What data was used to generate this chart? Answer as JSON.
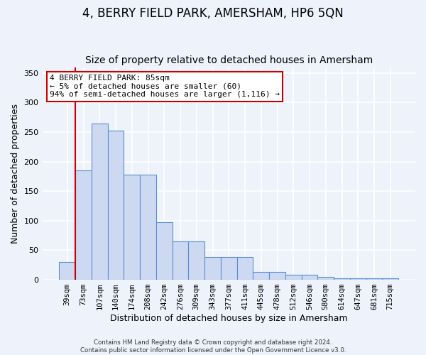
{
  "title": "4, BERRY FIELD PARK, AMERSHAM, HP6 5QN",
  "subtitle": "Size of property relative to detached houses in Amersham",
  "xlabel": "Distribution of detached houses by size in Amersham",
  "ylabel": "Number of detached properties",
  "bin_labels": [
    "39sqm",
    "73sqm",
    "107sqm",
    "140sqm",
    "174sqm",
    "208sqm",
    "242sqm",
    "276sqm",
    "309sqm",
    "343sqm",
    "377sqm",
    "411sqm",
    "445sqm",
    "478sqm",
    "512sqm",
    "546sqm",
    "580sqm",
    "614sqm",
    "647sqm",
    "681sqm",
    "715sqm"
  ],
  "bar_heights": [
    30,
    185,
    265,
    253,
    178,
    178,
    97,
    65,
    65,
    38,
    38,
    38,
    13,
    13,
    8,
    8,
    5,
    3,
    3,
    3,
    3
  ],
  "bar_color": "#cdd9f0",
  "bar_edge_color": "#5b8ed6",
  "background_color": "#edf2fb",
  "grid_color": "#ffffff",
  "red_line_bin_index": 1,
  "annotation_text": "4 BERRY FIELD PARK: 85sqm\n← 5% of detached houses are smaller (60)\n94% of semi-detached houses are larger (1,116) →",
  "annotation_box_color": "#ffffff",
  "annotation_box_edge_color": "#cc0000",
  "ylim": [
    0,
    360
  ],
  "yticks": [
    0,
    50,
    100,
    150,
    200,
    250,
    300,
    350
  ],
  "footnote": "Contains HM Land Registry data © Crown copyright and database right 2024.\nContains public sector information licensed under the Open Government Licence v3.0.",
  "title_fontsize": 12,
  "subtitle_fontsize": 10,
  "xlabel_fontsize": 9,
  "ylabel_fontsize": 9,
  "tick_fontsize": 7.5,
  "annotation_fontsize": 8
}
